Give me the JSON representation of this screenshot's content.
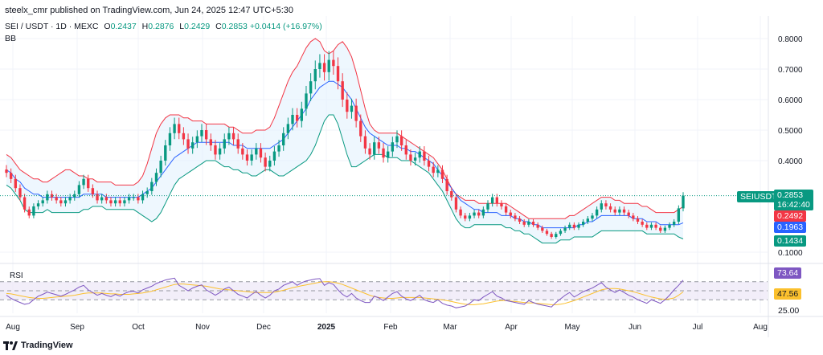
{
  "header": {
    "published": "steelx_cmr published on TradingView.com, Jun 24, 2025 12:47 UTC+5:30"
  },
  "legend": {
    "symbol": "SEI / USDT · 1D · MEXC",
    "o_label": "O",
    "o_value": "0.2437",
    "h_label": "H",
    "h_value": "0.2876",
    "l_label": "L",
    "l_value": "0.2429",
    "c_label": "C",
    "c_value": "0.2853",
    "change": "+0.0414 (+16.97%)",
    "indicator": "BB"
  },
  "rsi": {
    "title": "RSI",
    "value": "73.64",
    "ma_value": "47.56",
    "level_label": "25.00"
  },
  "tags": {
    "ticker": "SEIUSDT",
    "last_price": "0.2853",
    "countdown": "16:42:40",
    "bb_upper": "0.2492",
    "bb_basis": "0.1963",
    "bb_lower": "0.1434"
  },
  "footer": {
    "brand": "TradingView"
  },
  "colors": {
    "up": "#089981",
    "down": "#f23645",
    "basis": "#2962ff",
    "upper": "#f23645",
    "lower": "#089981",
    "band_fill": "#e3f2fd",
    "rsi_line": "#7e57c2",
    "rsi_ma": "#fbc02d",
    "rsi_fill": "#ede7f6"
  },
  "chart_data": {
    "type": "candlestick",
    "price_axis": {
      "ticks": [
        0.8,
        0.7,
        0.6,
        0.5,
        0.4,
        0.1
      ],
      "tick_labels": [
        "0.8000",
        "0.7000",
        "0.6000",
        "0.5000",
        "0.4000",
        "0.1000"
      ]
    },
    "time_axis": {
      "labels": [
        "Aug",
        "Sep",
        "Oct",
        "Nov",
        "Dec",
        "2025",
        "Feb",
        "Mar",
        "Apr",
        "May",
        "Jun",
        "Jul",
        "Aug"
      ]
    },
    "close_series": [
      0.36,
      0.34,
      0.31,
      0.28,
      0.24,
      0.22,
      0.25,
      0.26,
      0.27,
      0.29,
      0.28,
      0.27,
      0.26,
      0.27,
      0.28,
      0.29,
      0.32,
      0.34,
      0.31,
      0.29,
      0.27,
      0.28,
      0.27,
      0.26,
      0.27,
      0.26,
      0.27,
      0.28,
      0.28,
      0.27,
      0.29,
      0.3,
      0.33,
      0.36,
      0.4,
      0.45,
      0.49,
      0.52,
      0.49,
      0.47,
      0.44,
      0.46,
      0.48,
      0.5,
      0.47,
      0.45,
      0.42,
      0.44,
      0.47,
      0.49,
      0.47,
      0.44,
      0.42,
      0.4,
      0.42,
      0.44,
      0.41,
      0.38,
      0.4,
      0.43,
      0.45,
      0.49,
      0.52,
      0.55,
      0.53,
      0.57,
      0.62,
      0.66,
      0.7,
      0.72,
      0.69,
      0.73,
      0.71,
      0.66,
      0.6,
      0.56,
      0.58,
      0.53,
      0.48,
      0.44,
      0.42,
      0.46,
      0.44,
      0.41,
      0.43,
      0.46,
      0.48,
      0.45,
      0.42,
      0.4,
      0.41,
      0.43,
      0.4,
      0.38,
      0.36,
      0.37,
      0.34,
      0.3,
      0.28,
      0.24,
      0.22,
      0.21,
      0.22,
      0.23,
      0.22,
      0.24,
      0.26,
      0.28,
      0.26,
      0.25,
      0.23,
      0.22,
      0.21,
      0.2,
      0.19,
      0.2,
      0.19,
      0.18,
      0.17,
      0.16,
      0.15,
      0.16,
      0.17,
      0.18,
      0.19,
      0.18,
      0.19,
      0.2,
      0.21,
      0.22,
      0.24,
      0.26,
      0.25,
      0.24,
      0.23,
      0.24,
      0.23,
      0.22,
      0.21,
      0.2,
      0.19,
      0.18,
      0.19,
      0.18,
      0.17,
      0.18,
      0.19,
      0.2,
      0.2437,
      0.2853
    ],
    "bb_upper_series": [
      0.42,
      0.41,
      0.39,
      0.37,
      0.36,
      0.35,
      0.34,
      0.34,
      0.33,
      0.33,
      0.34,
      0.35,
      0.36,
      0.37,
      0.37,
      0.36,
      0.35,
      0.35,
      0.34,
      0.34,
      0.33,
      0.33,
      0.33,
      0.33,
      0.32,
      0.32,
      0.32,
      0.32,
      0.32,
      0.33,
      0.35,
      0.39,
      0.44,
      0.49,
      0.52,
      0.54,
      0.55,
      0.55,
      0.55,
      0.54,
      0.54,
      0.53,
      0.53,
      0.53,
      0.52,
      0.52,
      0.52,
      0.52,
      0.52,
      0.51,
      0.51,
      0.5,
      0.49,
      0.49,
      0.49,
      0.5,
      0.5,
      0.5,
      0.51,
      0.54,
      0.58,
      0.62,
      0.66,
      0.69,
      0.71,
      0.74,
      0.77,
      0.79,
      0.8,
      0.79,
      0.76,
      0.75,
      0.76,
      0.78,
      0.79,
      0.77,
      0.74,
      0.69,
      0.63,
      0.57,
      0.52,
      0.5,
      0.49,
      0.49,
      0.49,
      0.49,
      0.49,
      0.48,
      0.47,
      0.46,
      0.45,
      0.44,
      0.43,
      0.42,
      0.41,
      0.39,
      0.37,
      0.34,
      0.31,
      0.29,
      0.28,
      0.27,
      0.27,
      0.27,
      0.26,
      0.26,
      0.26,
      0.26,
      0.26,
      0.26,
      0.26,
      0.25,
      0.24,
      0.23,
      0.22,
      0.21,
      0.21,
      0.21,
      0.21,
      0.21,
      0.21,
      0.21,
      0.21,
      0.21,
      0.22,
      0.22,
      0.23,
      0.24,
      0.25,
      0.26,
      0.27,
      0.28,
      0.28,
      0.28,
      0.27,
      0.27,
      0.26,
      0.26,
      0.26,
      0.26,
      0.25,
      0.25,
      0.24,
      0.23,
      0.23,
      0.23,
      0.23,
      0.23,
      0.24,
      0.2492
    ],
    "bb_basis_series": [
      0.37,
      0.36,
      0.34,
      0.33,
      0.31,
      0.3,
      0.29,
      0.29,
      0.28,
      0.28,
      0.28,
      0.28,
      0.28,
      0.28,
      0.28,
      0.28,
      0.28,
      0.29,
      0.29,
      0.29,
      0.29,
      0.29,
      0.28,
      0.28,
      0.28,
      0.28,
      0.28,
      0.28,
      0.28,
      0.28,
      0.29,
      0.3,
      0.31,
      0.33,
      0.35,
      0.37,
      0.39,
      0.41,
      0.42,
      0.43,
      0.44,
      0.45,
      0.46,
      0.46,
      0.46,
      0.46,
      0.46,
      0.46,
      0.46,
      0.46,
      0.45,
      0.45,
      0.45,
      0.44,
      0.44,
      0.44,
      0.44,
      0.44,
      0.44,
      0.45,
      0.46,
      0.47,
      0.49,
      0.51,
      0.53,
      0.55,
      0.57,
      0.6,
      0.62,
      0.64,
      0.65,
      0.66,
      0.66,
      0.65,
      0.64,
      0.62,
      0.6,
      0.57,
      0.54,
      0.51,
      0.49,
      0.48,
      0.47,
      0.46,
      0.45,
      0.45,
      0.45,
      0.44,
      0.44,
      0.43,
      0.43,
      0.42,
      0.41,
      0.4,
      0.39,
      0.37,
      0.35,
      0.33,
      0.31,
      0.29,
      0.27,
      0.26,
      0.25,
      0.24,
      0.24,
      0.23,
      0.23,
      0.23,
      0.23,
      0.22,
      0.22,
      0.22,
      0.21,
      0.21,
      0.2,
      0.2,
      0.19,
      0.19,
      0.18,
      0.18,
      0.18,
      0.18,
      0.18,
      0.18,
      0.18,
      0.18,
      0.19,
      0.19,
      0.2,
      0.2,
      0.21,
      0.22,
      0.22,
      0.22,
      0.22,
      0.22,
      0.22,
      0.22,
      0.21,
      0.21,
      0.21,
      0.2,
      0.2,
      0.2,
      0.19,
      0.19,
      0.19,
      0.19,
      0.19,
      0.1963
    ],
    "bb_lower_series": [
      0.32,
      0.31,
      0.29,
      0.27,
      0.24,
      0.23,
      0.23,
      0.23,
      0.23,
      0.24,
      0.23,
      0.23,
      0.23,
      0.23,
      0.23,
      0.23,
      0.23,
      0.24,
      0.24,
      0.25,
      0.25,
      0.25,
      0.24,
      0.24,
      0.24,
      0.24,
      0.24,
      0.24,
      0.24,
      0.23,
      0.22,
      0.21,
      0.2,
      0.21,
      0.23,
      0.26,
      0.29,
      0.32,
      0.34,
      0.35,
      0.36,
      0.37,
      0.38,
      0.39,
      0.4,
      0.4,
      0.4,
      0.39,
      0.38,
      0.38,
      0.37,
      0.37,
      0.36,
      0.36,
      0.35,
      0.35,
      0.36,
      0.37,
      0.37,
      0.36,
      0.35,
      0.35,
      0.36,
      0.37,
      0.38,
      0.39,
      0.4,
      0.42,
      0.45,
      0.49,
      0.53,
      0.55,
      0.55,
      0.52,
      0.47,
      0.42,
      0.38,
      0.38,
      0.39,
      0.4,
      0.41,
      0.42,
      0.42,
      0.42,
      0.41,
      0.41,
      0.41,
      0.4,
      0.4,
      0.4,
      0.39,
      0.38,
      0.37,
      0.36,
      0.34,
      0.32,
      0.3,
      0.27,
      0.24,
      0.21,
      0.19,
      0.18,
      0.18,
      0.19,
      0.19,
      0.19,
      0.19,
      0.19,
      0.19,
      0.19,
      0.18,
      0.18,
      0.17,
      0.17,
      0.16,
      0.16,
      0.15,
      0.14,
      0.13,
      0.13,
      0.13,
      0.13,
      0.14,
      0.14,
      0.14,
      0.15,
      0.15,
      0.15,
      0.15,
      0.15,
      0.16,
      0.17,
      0.17,
      0.17,
      0.17,
      0.17,
      0.17,
      0.17,
      0.17,
      0.17,
      0.17,
      0.16,
      0.16,
      0.16,
      0.16,
      0.16,
      0.16,
      0.16,
      0.15,
      0.1434
    ],
    "rsi_series": [
      40,
      33,
      28,
      24,
      20,
      22,
      30,
      38,
      42,
      47,
      44,
      41,
      38,
      42,
      47,
      52,
      58,
      62,
      52,
      46,
      40,
      44,
      40,
      37,
      42,
      38,
      44,
      48,
      49,
      45,
      52,
      56,
      60,
      66,
      70,
      74,
      76,
      78,
      62,
      56,
      50,
      56,
      60,
      63,
      52,
      46,
      40,
      46,
      54,
      58,
      50,
      42,
      38,
      34,
      42,
      48,
      40,
      34,
      40,
      50,
      54,
      62,
      66,
      70,
      62,
      68,
      72,
      74,
      76,
      77,
      62,
      68,
      64,
      52,
      42,
      36,
      44,
      34,
      28,
      24,
      24,
      38,
      34,
      28,
      36,
      44,
      48,
      38,
      32,
      28,
      34,
      40,
      30,
      26,
      24,
      30,
      22,
      18,
      16,
      12,
      14,
      16,
      22,
      30,
      28,
      36,
      42,
      48,
      38,
      34,
      28,
      26,
      24,
      22,
      20,
      28,
      24,
      20,
      18,
      16,
      14,
      24,
      32,
      40,
      46,
      36,
      42,
      48,
      52,
      56,
      62,
      68,
      58,
      52,
      46,
      52,
      46,
      40,
      36,
      30,
      26,
      22,
      30,
      26,
      22,
      30,
      40,
      52,
      62,
      73.64
    ],
    "rsi_ma_series": [
      44,
      43,
      41,
      39,
      37,
      35,
      34,
      33,
      33,
      34,
      35,
      36,
      37,
      38,
      39,
      40,
      42,
      44,
      45,
      45,
      45,
      45,
      44,
      43,
      43,
      42,
      42,
      42,
      43,
      44,
      45,
      47,
      49,
      52,
      55,
      58,
      61,
      64,
      65,
      65,
      64,
      63,
      62,
      61,
      60,
      58,
      56,
      54,
      53,
      52,
      51,
      50,
      49,
      48,
      47,
      46,
      46,
      46,
      46,
      47,
      49,
      51,
      54,
      57,
      59,
      61,
      63,
      65,
      67,
      69,
      70,
      70,
      69,
      67,
      64,
      60,
      56,
      52,
      48,
      44,
      40,
      37,
      35,
      34,
      33,
      33,
      34,
      35,
      35,
      35,
      35,
      35,
      34,
      33,
      32,
      31,
      30,
      28,
      26,
      24,
      22,
      20,
      19,
      19,
      20,
      21,
      23,
      25,
      27,
      28,
      28,
      27,
      26,
      25,
      24,
      23,
      23,
      22,
      21,
      20,
      19,
      19,
      20,
      22,
      25,
      28,
      32,
      36,
      40,
      44,
      48,
      52,
      54,
      55,
      55,
      54,
      52,
      50,
      48,
      45,
      42,
      39,
      36,
      34,
      32,
      31,
      32,
      34,
      40,
      47.56
    ],
    "rsi_levels": [
      70,
      50,
      30
    ]
  }
}
